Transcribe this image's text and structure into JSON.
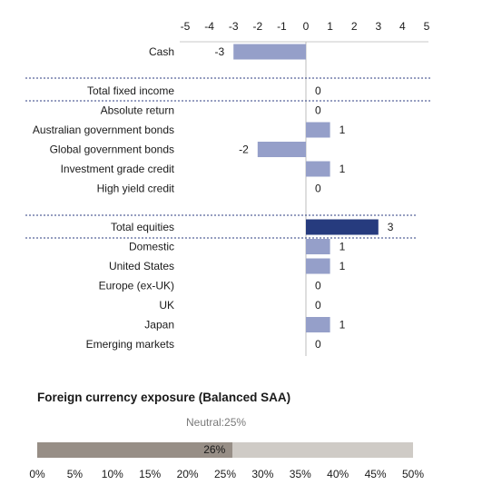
{
  "chart_data": [
    {
      "type": "bar",
      "orientation": "horizontal",
      "xlim": [
        -5,
        5
      ],
      "xticks": [
        "-5",
        "-4",
        "-3",
        "-2",
        "-1",
        "0",
        "1",
        "2",
        "3",
        "4",
        "5"
      ],
      "groups": [
        {
          "name": "cash",
          "rows": [
            {
              "label": "Cash",
              "value": -3,
              "value_label": "-3",
              "total": false
            }
          ]
        },
        {
          "name": "fixed-income",
          "rows": [
            {
              "label": "Total fixed income",
              "value": 0,
              "value_label": "0",
              "total": true
            },
            {
              "label": "Absolute return",
              "value": 0,
              "value_label": "0",
              "total": false
            },
            {
              "label": "Australian government bonds",
              "value": 1,
              "value_label": "1",
              "total": false
            },
            {
              "label": "Global government bonds",
              "value": -2,
              "value_label": "-2",
              "total": false
            },
            {
              "label": "Investment grade credit",
              "value": 1,
              "value_label": "1",
              "total": false
            },
            {
              "label": "High yield credit",
              "value": 0,
              "value_label": "0",
              "total": false
            }
          ]
        },
        {
          "name": "equities",
          "rows": [
            {
              "label": "Total equities",
              "value": 3,
              "value_label": "3",
              "total": true
            },
            {
              "label": "Domestic",
              "value": 1,
              "value_label": "1",
              "total": false
            },
            {
              "label": "United States",
              "value": 1,
              "value_label": "1",
              "total": false
            },
            {
              "label": "Europe (ex-UK)",
              "value": 0,
              "value_label": "0",
              "total": false
            },
            {
              "label": "UK",
              "value": 0,
              "value_label": "0",
              "total": false
            },
            {
              "label": "Japan",
              "value": 1,
              "value_label": "1",
              "total": false
            },
            {
              "label": "Emerging markets",
              "value": 0,
              "value_label": "0",
              "total": false
            }
          ]
        }
      ],
      "colors": {
        "bar": "#959fc9",
        "total_bar": "#263b7e",
        "divider": "#2c3e80",
        "zero_line": "#bdbdbd"
      }
    },
    {
      "type": "bar",
      "orientation": "horizontal-stacked",
      "title": "Foreign currency exposure (Balanced SAA)",
      "neutral_label": "Neutral:25%",
      "value": 26,
      "value_label": "26%",
      "xlim": [
        0,
        50
      ],
      "xticks": [
        "0%",
        "5%",
        "10%",
        "15%",
        "20%",
        "25%",
        "30%",
        "35%",
        "40%",
        "45%",
        "50%"
      ],
      "colors": {
        "fill": "#978e86",
        "background": "#cfcbc6"
      }
    }
  ]
}
